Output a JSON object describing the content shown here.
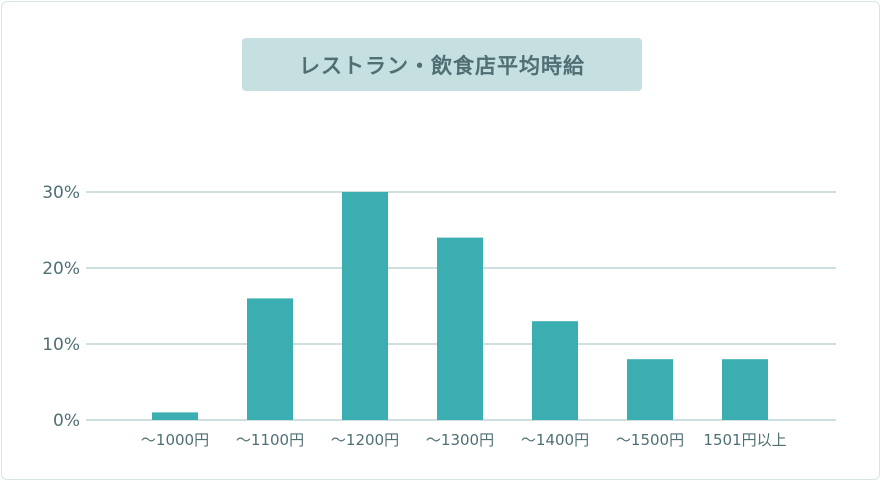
{
  "chart_data": {
    "type": "bar",
    "title": "レストラン・飲食店平均時給",
    "categories": [
      "～1000円",
      "～1100円",
      "～1200円",
      "～1300円",
      "～1400円",
      "～1500円",
      "1501円以上"
    ],
    "values": [
      1,
      16,
      30,
      24,
      13,
      8,
      8
    ],
    "y_ticks": [
      "0%",
      "10%",
      "20%",
      "30%"
    ],
    "ylim": [
      0,
      30
    ],
    "xlabel": "",
    "ylabel": "",
    "grid": true,
    "bar_color": "#3aaeb1",
    "grid_color": "#9ebfc0",
    "text_color": "#4f6f74",
    "title_bg_color": "#c6dfe1"
  }
}
